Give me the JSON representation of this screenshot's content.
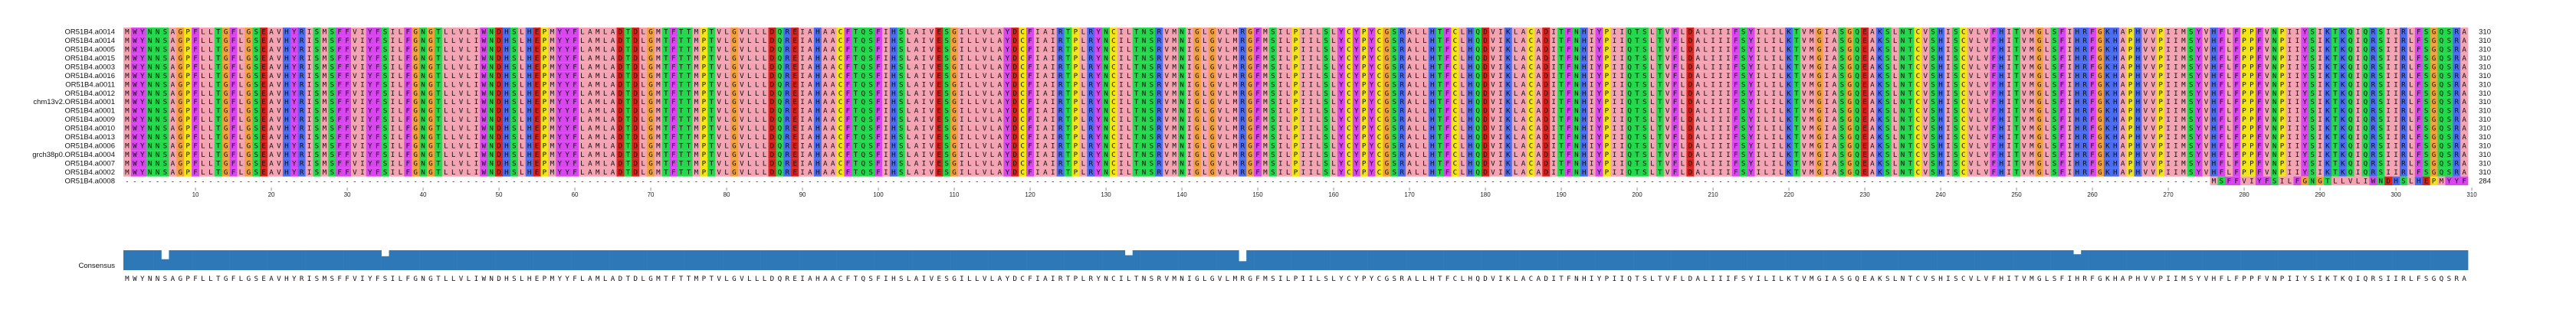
{
  "alignment": {
    "names": [
      "OR51B4.a0014",
      "OR51B4.a0014",
      "OR51B4.a0005",
      "OR51B4.a0015",
      "OR51B4.a0003",
      "OR51B4.a0016",
      "OR51B4.a0011",
      "OR51B4.a0012",
      "chm13v2.OR51B4.a0001",
      "OR51B4.a0001",
      "OR51B4.a0009",
      "OR51B4.a0010",
      "OR51B4.a0013",
      "OR51B4.a0006",
      "grch38p0.OR51B4.a0004",
      "OR51B4.a0007",
      "OR51B4.a0002",
      "OR51B4.a0008"
    ],
    "consensus_sequence": "MWYNNSAGPFLLTGFLGSEAVHYRISMSFFVIYFSILFGNGTLLVLIWNDHSLHEPMYYFLAMLADTDLGMTFTTMPTVLGVLLLDQREIAHAACFTQSFIHSLAIVESGILLVLAYDCFIAIRTPLRYNCILTNSRVMNIGLGVLMRGFMSILPIILSLYCYPYCGSRALLHTFCLHQDVIKLACADITFNHIYPIIQTSLTVFLDALIIIFSYILILKTVMGIASGQEAKSLNTCVSHISCVLVFHITVMGLSFIHRFGKHAPHVVPIIMSYVHFLFPPFVNPIIYSIKTKQIQRSIIRLFSGQSRA",
    "row_sequences": {
      "0": "MWYNNSAGPFLLTGFLGSEAVHYRISMSFFVIYFSILFGNGTLLVLIWNDHSLHEPMYYFLAMLADTDLGMTFTTMPTVLGVLLLDQREIAHAACFTQSFIHSLAIVESGILLVLAYDCFIAIRTPLRYNCILTNSRVMNIGLGVLMRGFMSILPIILSLYCYPYCGSRALLHTFCLHQDVIKLACADITFNHIYPIIQTSLTVFLDALIIIFSYILILKTVMGIASGQEAKSLNTCVSHISCVLVFHITVMGLSFIHRFGKHAPHVVPIIMSYVHFLFPPFVNPIIYSIKTKQIQRSIIRLFSGQSRA",
      "17": "-----------------------------------------------------------------------------------------------------------------------------------------------------------------------------------------------------------------------------------------------------------------------------------MSFFVIYFSILFGNGTLLVLIWNDHSLHEPMYYFLAMLADTDLGMTF"
    },
    "lengths": [
      "310",
      "310",
      "310",
      "310",
      "310",
      "310",
      "310",
      "310",
      "310",
      "310",
      "310",
      "310",
      "310",
      "310",
      "310",
      "310",
      "310",
      "284"
    ],
    "consensus_label": "Consensus",
    "ruler_ticks": [
      "10",
      "20",
      "30",
      "40",
      "50",
      "60",
      "70",
      "80",
      "90",
      "100",
      "110",
      "120",
      "130",
      "140",
      "150",
      "160",
      "170",
      "180",
      "190",
      "200",
      "210",
      "220",
      "230",
      "240",
      "250",
      "260",
      "270",
      "280",
      "290",
      "300",
      "310"
    ],
    "conservation_dips": [
      {
        "position": 6,
        "level": 0.55
      },
      {
        "position": 35,
        "level": 0.7
      },
      {
        "position": 133,
        "level": 0.75
      },
      {
        "position": 148,
        "level": 0.45
      },
      {
        "position": 258,
        "level": 0.8
      }
    ],
    "conservation_default": 1.0,
    "colors": {
      "hydrophobic_pink": "#f4a3b3",
      "polar_green": "#23d84a",
      "charged_red": "#d8231d",
      "aromatic_magenta": "#d946ef",
      "g_orange": "#f2a03a",
      "p_yellow": "#f3e515",
      "cys_yellow": "#f3e515",
      "pos_blue": "#4a6cf0",
      "conservation_bar": "#2f78b7"
    }
  }
}
